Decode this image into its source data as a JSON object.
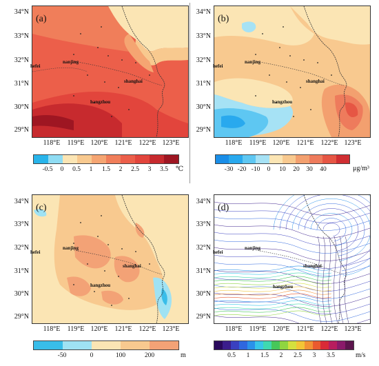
{
  "lat_labels": [
    "34°N",
    "33°N",
    "32°N",
    "31°N",
    "30°N",
    "29°N"
  ],
  "lon_labels": [
    "118°E",
    "119°E",
    "120°E",
    "121°E",
    "122°E",
    "123°E"
  ],
  "cities": [
    {
      "name": "nanjing"
    },
    {
      "name": "shanghai"
    },
    {
      "name": "hefei"
    },
    {
      "name": "hangzhou"
    }
  ],
  "panels": [
    {
      "label": "(a)",
      "colorbar": {
        "colors": [
          "#28b4ea",
          "#8fdcf3",
          "#fbe5b4",
          "#f8c98f",
          "#f5a572",
          "#f07e5a",
          "#ec5f4a",
          "#e2453c",
          "#c72a2e",
          "#9e1622"
        ],
        "ticks": [
          "-0.5",
          "0",
          "0.5",
          "1",
          "1.5",
          "2",
          "2.5",
          "3",
          "3.5"
        ],
        "unit": "℃"
      }
    },
    {
      "label": "(b)",
      "colorbar": {
        "colors": [
          "#1a8ee8",
          "#29a9ee",
          "#5ec7f2",
          "#a6e2f5",
          "#fbe5b4",
          "#f8c98f",
          "#f3a06f",
          "#ee7b5c",
          "#e65644",
          "#d02e32"
        ],
        "ticks": [
          "-30",
          "-20",
          "-10",
          "0",
          "10",
          "20",
          "30",
          "40"
        ],
        "unit": "μg/m³"
      }
    },
    {
      "label": "(c)",
      "colorbar": {
        "colors": [
          "#39bde9",
          "#9fe2f3",
          "#fbe5b4",
          "#f8c98f",
          "#f3a276"
        ],
        "ticks": [
          "-50",
          "0",
          "100",
          "200"
        ],
        "unit": "m"
      }
    },
    {
      "label": "(d)",
      "colorbar": {
        "colors": [
          "#2a0a5c",
          "#3b1e8c",
          "#3a40c0",
          "#2f67df",
          "#2a92ea",
          "#37c6e8",
          "#3fd9b0",
          "#47c75a",
          "#8fd540",
          "#d4e03e",
          "#f2c536",
          "#f29234",
          "#ea5a2e",
          "#d92a36",
          "#b81d5e",
          "#8a1a6a",
          "#5c154d"
        ],
        "ticks": [
          "0.5",
          "1",
          "1.5",
          "2",
          "2.5",
          "3",
          "3.5"
        ],
        "unit": "m/s"
      }
    }
  ]
}
